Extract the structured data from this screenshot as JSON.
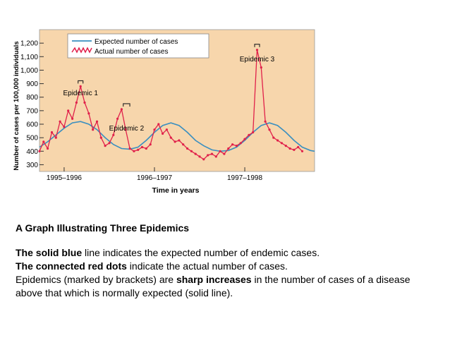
{
  "chart_data": {
    "type": "line",
    "ylabel": "Number of cases per 100,000 individuals",
    "xlabel": "Time in years",
    "categories": [
      "1995–1996",
      "1996–1997",
      "1997–1998"
    ],
    "yticks": [
      300,
      400,
      500,
      600,
      700,
      800,
      900,
      "1,000",
      "1,100",
      "1,200"
    ],
    "ylim": [
      250,
      1300
    ],
    "xlim": [
      0,
      3.35
    ],
    "legend_position": "top-left",
    "series": [
      {
        "name": "Expected number of cases",
        "color": "#3a8fc0",
        "x": [
          0.0,
          0.1,
          0.2,
          0.3,
          0.4,
          0.5,
          0.6,
          0.7,
          0.8,
          0.9,
          1.0,
          1.1,
          1.2,
          1.3,
          1.4,
          1.5,
          1.6,
          1.7,
          1.8,
          1.9,
          2.0,
          2.1,
          2.2,
          2.3,
          2.4,
          2.5,
          2.6,
          2.7,
          2.8,
          2.9,
          3.0,
          3.1,
          3.2,
          3.3,
          3.35
        ],
        "y": [
          430,
          470,
          520,
          570,
          610,
          620,
          600,
          560,
          500,
          450,
          420,
          415,
          430,
          480,
          540,
          590,
          610,
          590,
          540,
          480,
          440,
          410,
          400,
          405,
          430,
          480,
          540,
          590,
          610,
          590,
          540,
          480,
          430,
          405,
          400
        ]
      },
      {
        "name": "Actual number of cases",
        "color": "#e0204a",
        "x": [
          0.0,
          0.05,
          0.1,
          0.15,
          0.2,
          0.25,
          0.3,
          0.35,
          0.4,
          0.45,
          0.5,
          0.55,
          0.6,
          0.65,
          0.7,
          0.75,
          0.8,
          0.85,
          0.9,
          0.95,
          1.0,
          1.05,
          1.1,
          1.15,
          1.2,
          1.25,
          1.3,
          1.35,
          1.4,
          1.45,
          1.5,
          1.55,
          1.6,
          1.65,
          1.7,
          1.75,
          1.8,
          1.85,
          1.9,
          1.95,
          2.0,
          2.05,
          2.1,
          2.15,
          2.2,
          2.25,
          2.3,
          2.35,
          2.4,
          2.45,
          2.5,
          2.55,
          2.6,
          2.65,
          2.7,
          2.75,
          2.8,
          2.85,
          2.9,
          2.95,
          3.0,
          3.05,
          3.1,
          3.15,
          3.2
        ],
        "y": [
          400,
          470,
          420,
          540,
          500,
          620,
          580,
          700,
          640,
          760,
          880,
          760,
          680,
          560,
          620,
          500,
          440,
          460,
          520,
          640,
          710,
          560,
          420,
          400,
          410,
          430,
          420,
          450,
          560,
          600,
          530,
          560,
          500,
          470,
          480,
          450,
          420,
          400,
          380,
          360,
          340,
          370,
          380,
          360,
          400,
          380,
          420,
          450,
          440,
          460,
          490,
          520,
          540,
          1150,
          1020,
          620,
          560,
          500,
          480,
          460,
          440,
          420,
          410,
          430,
          400
        ]
      }
    ],
    "annotations": [
      "Epidemic 1",
      "Epidemic 2",
      "Epidemic 3"
    ]
  },
  "caption": {
    "title": "A Graph Illustrating Three Epidemics",
    "line1_bold": "The solid blue",
    "line1_rest": " line indicates the expected number of endemic cases.",
    "line2_bold": "The connected red dots",
    "line2_rest": " indicate the actual number of cases.",
    "line3_a": "Epidemics (marked by brackets) are ",
    "line3_bold": "sharp increases",
    "line3_b": " in the number of cases of a disease above that which is normally expected (solid line)."
  }
}
